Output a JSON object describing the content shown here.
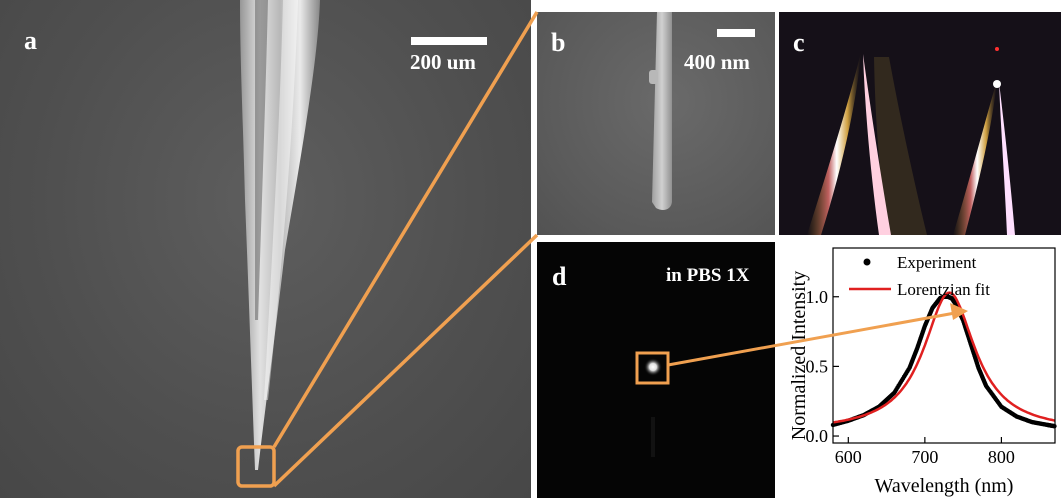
{
  "panels": {
    "a": {
      "label": "a",
      "scale_bar": "200 um"
    },
    "b": {
      "label": "b",
      "scale_bar": "400 nm"
    },
    "c": {
      "label": "c"
    },
    "d": {
      "label": "d",
      "medium": "in PBS 1X"
    }
  },
  "colors": {
    "connector": "#f0a050",
    "fit_line": "#e02020",
    "experiment_points": "#000000"
  },
  "chart_data": {
    "type": "scatter",
    "xlabel": "Wavelength (nm)",
    "ylabel": "Normalized Intensity",
    "xlim": [
      580,
      870
    ],
    "ylim": [
      -0.05,
      1.35
    ],
    "xticks": [
      600,
      700,
      800
    ],
    "yticks": [
      0.0,
      0.5,
      1.0
    ],
    "xtick_labels": [
      "600",
      "700",
      "800"
    ],
    "ytick_labels": [
      "0.0",
      "0.5",
      "1.0"
    ],
    "legend_position": "top-right",
    "series": [
      {
        "name": "Experiment",
        "kind": "points",
        "x": [
          580,
          600,
          620,
          640,
          660,
          680,
          690,
          700,
          710,
          720,
          725,
          730,
          735,
          740,
          750,
          760,
          770,
          780,
          800,
          820,
          840,
          860,
          870
        ],
        "y": [
          0.08,
          0.11,
          0.15,
          0.21,
          0.31,
          0.49,
          0.63,
          0.79,
          0.92,
          0.99,
          1.0,
          1.0,
          0.99,
          0.95,
          0.83,
          0.66,
          0.49,
          0.36,
          0.21,
          0.14,
          0.1,
          0.08,
          0.07
        ]
      },
      {
        "name": "Lorentzian fit",
        "kind": "line",
        "center": 732,
        "fwhm": 82,
        "amplitude": 1.0
      }
    ]
  }
}
